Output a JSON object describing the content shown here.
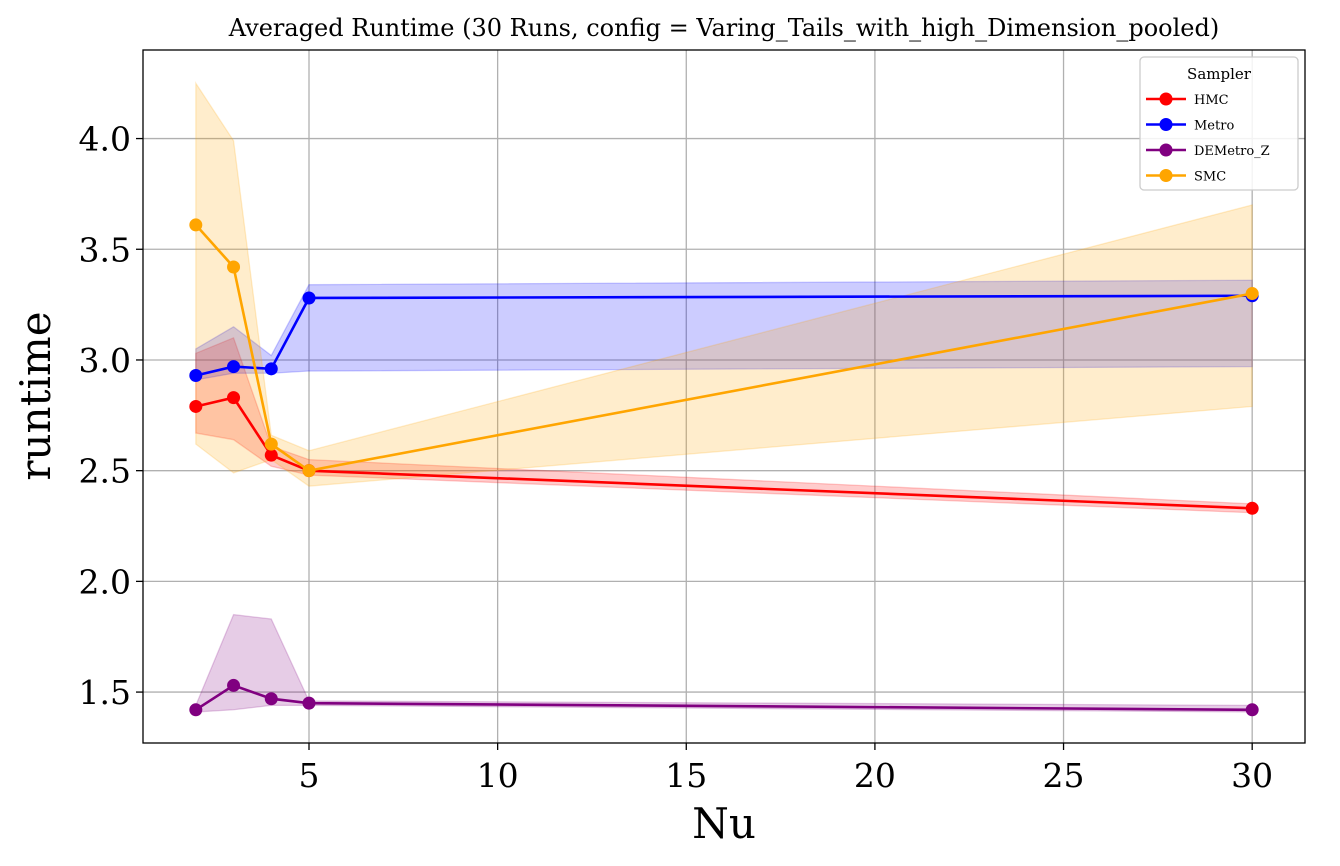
{
  "chart_data": {
    "type": "line",
    "title": "Averaged Runtime (30 Runs, config = Varing_Tails_with_high_Dimension_pooled)",
    "xlabel": "Nu",
    "ylabel": "runtime",
    "xlim": [
      0.6,
      31.4
    ],
    "ylim": [
      1.27,
      4.4
    ],
    "xticks": [
      5,
      10,
      15,
      20,
      25,
      30
    ],
    "xtick_labels": [
      "5",
      "10",
      "15",
      "20",
      "25",
      "30"
    ],
    "yticks": [
      1.5,
      2.0,
      2.5,
      3.0,
      3.5,
      4.0
    ],
    "ytick_labels": [
      "1.5",
      "2.0",
      "2.5",
      "3.0",
      "3.5",
      "4.0"
    ],
    "grid": true,
    "legend": {
      "title": "Sampler",
      "position": "top-right"
    },
    "x": [
      2,
      3,
      4,
      5,
      30
    ],
    "series": [
      {
        "name": "HMC",
        "color": "#ff0000",
        "values": [
          2.79,
          2.83,
          2.57,
          2.5,
          2.33
        ],
        "lower": [
          2.67,
          2.64,
          2.52,
          2.48,
          2.31
        ],
        "upper": [
          3.03,
          3.1,
          2.61,
          2.55,
          2.35
        ]
      },
      {
        "name": "Metro",
        "color": "#0000ff",
        "values": [
          2.93,
          2.97,
          2.96,
          3.28,
          3.29
        ],
        "lower": [
          2.91,
          2.94,
          2.94,
          2.95,
          2.97
        ],
        "upper": [
          3.05,
          3.15,
          3.02,
          3.34,
          3.36
        ]
      },
      {
        "name": "DEMetro_Z",
        "color": "#800080",
        "values": [
          1.42,
          1.53,
          1.47,
          1.45,
          1.42
        ],
        "lower": [
          1.41,
          1.42,
          1.44,
          1.44,
          1.41
        ],
        "upper": [
          1.44,
          1.85,
          1.83,
          1.46,
          1.44
        ]
      },
      {
        "name": "SMC",
        "color": "#ffa500",
        "values": [
          3.61,
          3.42,
          2.62,
          2.5,
          3.3
        ],
        "lower": [
          2.62,
          2.49,
          2.55,
          2.43,
          2.79
        ],
        "upper": [
          4.25,
          3.99,
          2.66,
          2.59,
          3.7
        ]
      }
    ]
  }
}
